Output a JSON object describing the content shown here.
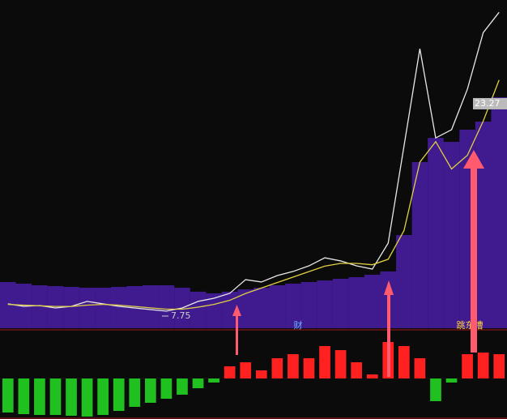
{
  "chart_data": [
    {
      "type": "line",
      "x": [
        1,
        2,
        3,
        4,
        5,
        6,
        7,
        8,
        9,
        10,
        11,
        12,
        13,
        14,
        15,
        16,
        17,
        18,
        19,
        20,
        21,
        22,
        23,
        24,
        25,
        26,
        27,
        28,
        29,
        30,
        31,
        32
      ],
      "xlim": [
        0.5,
        32.5
      ],
      "ylim": [
        6.86,
        30.85
      ],
      "series": [
        {
          "kind": "bars",
          "color": "#4a1fa8",
          "values": [
            10.24,
            10.12,
            10.0,
            9.94,
            9.88,
            9.82,
            9.82,
            9.88,
            9.94,
            10.0,
            10.0,
            9.82,
            9.53,
            9.41,
            9.53,
            9.7,
            9.82,
            10.0,
            10.12,
            10.24,
            10.35,
            10.47,
            10.59,
            10.77,
            11.01,
            13.67,
            19.0,
            20.77,
            20.48,
            21.37,
            21.96,
            23.74
          ]
        },
        {
          "kind": "line",
          "color": "#e8e8e8",
          "values": [
            8.64,
            8.46,
            8.52,
            8.34,
            8.46,
            8.82,
            8.64,
            8.46,
            8.34,
            8.22,
            8.11,
            8.34,
            8.82,
            9.05,
            9.41,
            10.41,
            10.24,
            10.71,
            11.01,
            11.42,
            12.01,
            11.78,
            11.42,
            11.18,
            13.08,
            20.18,
            27.29,
            20.77,
            21.37,
            24.33,
            28.47,
            29.95
          ]
        },
        {
          "kind": "line",
          "color": "#e0d040",
          "values": [
            8.6,
            8.55,
            8.5,
            8.45,
            8.45,
            8.55,
            8.6,
            8.55,
            8.45,
            8.35,
            8.25,
            8.25,
            8.4,
            8.6,
            8.9,
            9.4,
            9.8,
            10.2,
            10.6,
            11.0,
            11.4,
            11.6,
            11.6,
            11.5,
            11.9,
            14.0,
            19.0,
            20.5,
            18.5,
            19.5,
            22.0,
            25.0
          ]
        }
      ],
      "annotations": [
        {
          "text": "7.75",
          "value": 7.75
        },
        {
          "text": "23.27",
          "value": 23.27
        }
      ]
    },
    {
      "type": "bar",
      "x": [
        1,
        2,
        3,
        4,
        5,
        6,
        7,
        8,
        9,
        10,
        11,
        12,
        13,
        14,
        15,
        16,
        17,
        18,
        19,
        20,
        21,
        22,
        23,
        24,
        25,
        26,
        27,
        28,
        29,
        30,
        31,
        32
      ],
      "xlim": [
        0.5,
        32.5
      ],
      "ylim": [
        -50,
        59
      ],
      "up_color": "#ff2020",
      "down_color": "#20c020",
      "values": [
        -42,
        -44,
        -45,
        -45,
        -46,
        -47,
        -45,
        -40,
        -35,
        -30,
        -25,
        -20,
        -12,
        -5,
        15,
        20,
        10,
        25,
        30,
        25,
        40,
        35,
        20,
        5,
        45,
        40,
        25,
        -28,
        -5,
        30,
        32,
        30
      ],
      "labels": [
        "财",
        "跳东槽"
      ]
    }
  ]
}
